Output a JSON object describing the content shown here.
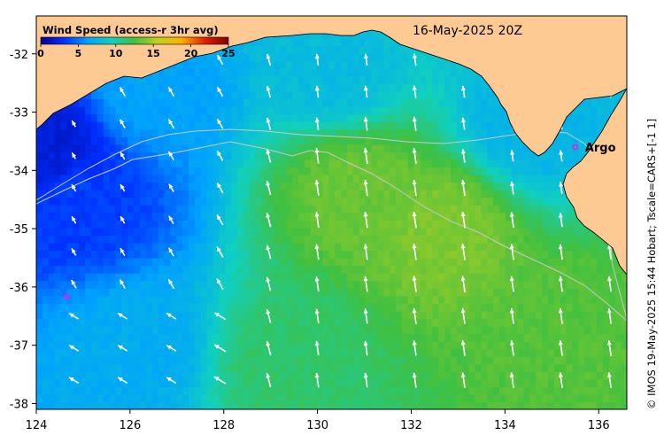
{
  "map": {
    "title": "16-May-2025 20Z",
    "x_axis": {
      "min": 124,
      "max": 136.6,
      "ticks": [
        "124",
        "126",
        "128",
        "130",
        "132",
        "134",
        "136"
      ]
    },
    "y_axis": {
      "min": -38.1,
      "max": -31.35,
      "ticks": [
        "-32",
        "-33",
        "-34",
        "-35",
        "-36",
        "-37",
        "-38"
      ]
    },
    "credit": "© IMOS 19-May-2025 15:44 Hobart; Tscale=CARS+[-1 1]",
    "colors": {
      "land": "#fdca94",
      "arrow": "#ffffff",
      "marker": "#e020e0",
      "contour": "#c8c8c8"
    }
  },
  "colorbar": {
    "title": "Wind Speed (access-r 3hr avg)",
    "ticks": [
      "0",
      "5",
      "10",
      "15",
      "20",
      "25"
    ],
    "range": [
      0,
      25
    ],
    "stops": [
      "#00008f",
      "#0030ff",
      "#00a0ff",
      "#10d0c0",
      "#40c040",
      "#c0d020",
      "#ffb000",
      "#e02000",
      "#800000"
    ]
  },
  "markers": [
    {
      "label": "Argo",
      "lon": 135.5,
      "lat": -33.6
    },
    {
      "label": "",
      "lon": 124.65,
      "lat": -36.17
    }
  ],
  "wind": {
    "description_units": "m/s",
    "field_centers": [
      {
        "lon": 124.2,
        "lat": -33.6,
        "speed": 2
      },
      {
        "lon": 125.0,
        "lat": -34.6,
        "speed": 3.5
      },
      {
        "lon": 130.8,
        "lat": -34.3,
        "speed": 13.5
      },
      {
        "lon": 132.7,
        "lat": -35.0,
        "speed": 14
      },
      {
        "lon": 135.3,
        "lat": -36.8,
        "speed": 13
      },
      {
        "lon": 129.5,
        "lat": -37.3,
        "speed": 11.5
      },
      {
        "lon": 126.0,
        "lat": -37.0,
        "speed": 7
      },
      {
        "lon": 126.5,
        "lat": -32.6,
        "speed": 6.5
      },
      {
        "lon": 130.3,
        "lat": -32.3,
        "speed": 8
      },
      {
        "lon": 134.5,
        "lat": -33.2,
        "speed": 7.5
      }
    ]
  }
}
